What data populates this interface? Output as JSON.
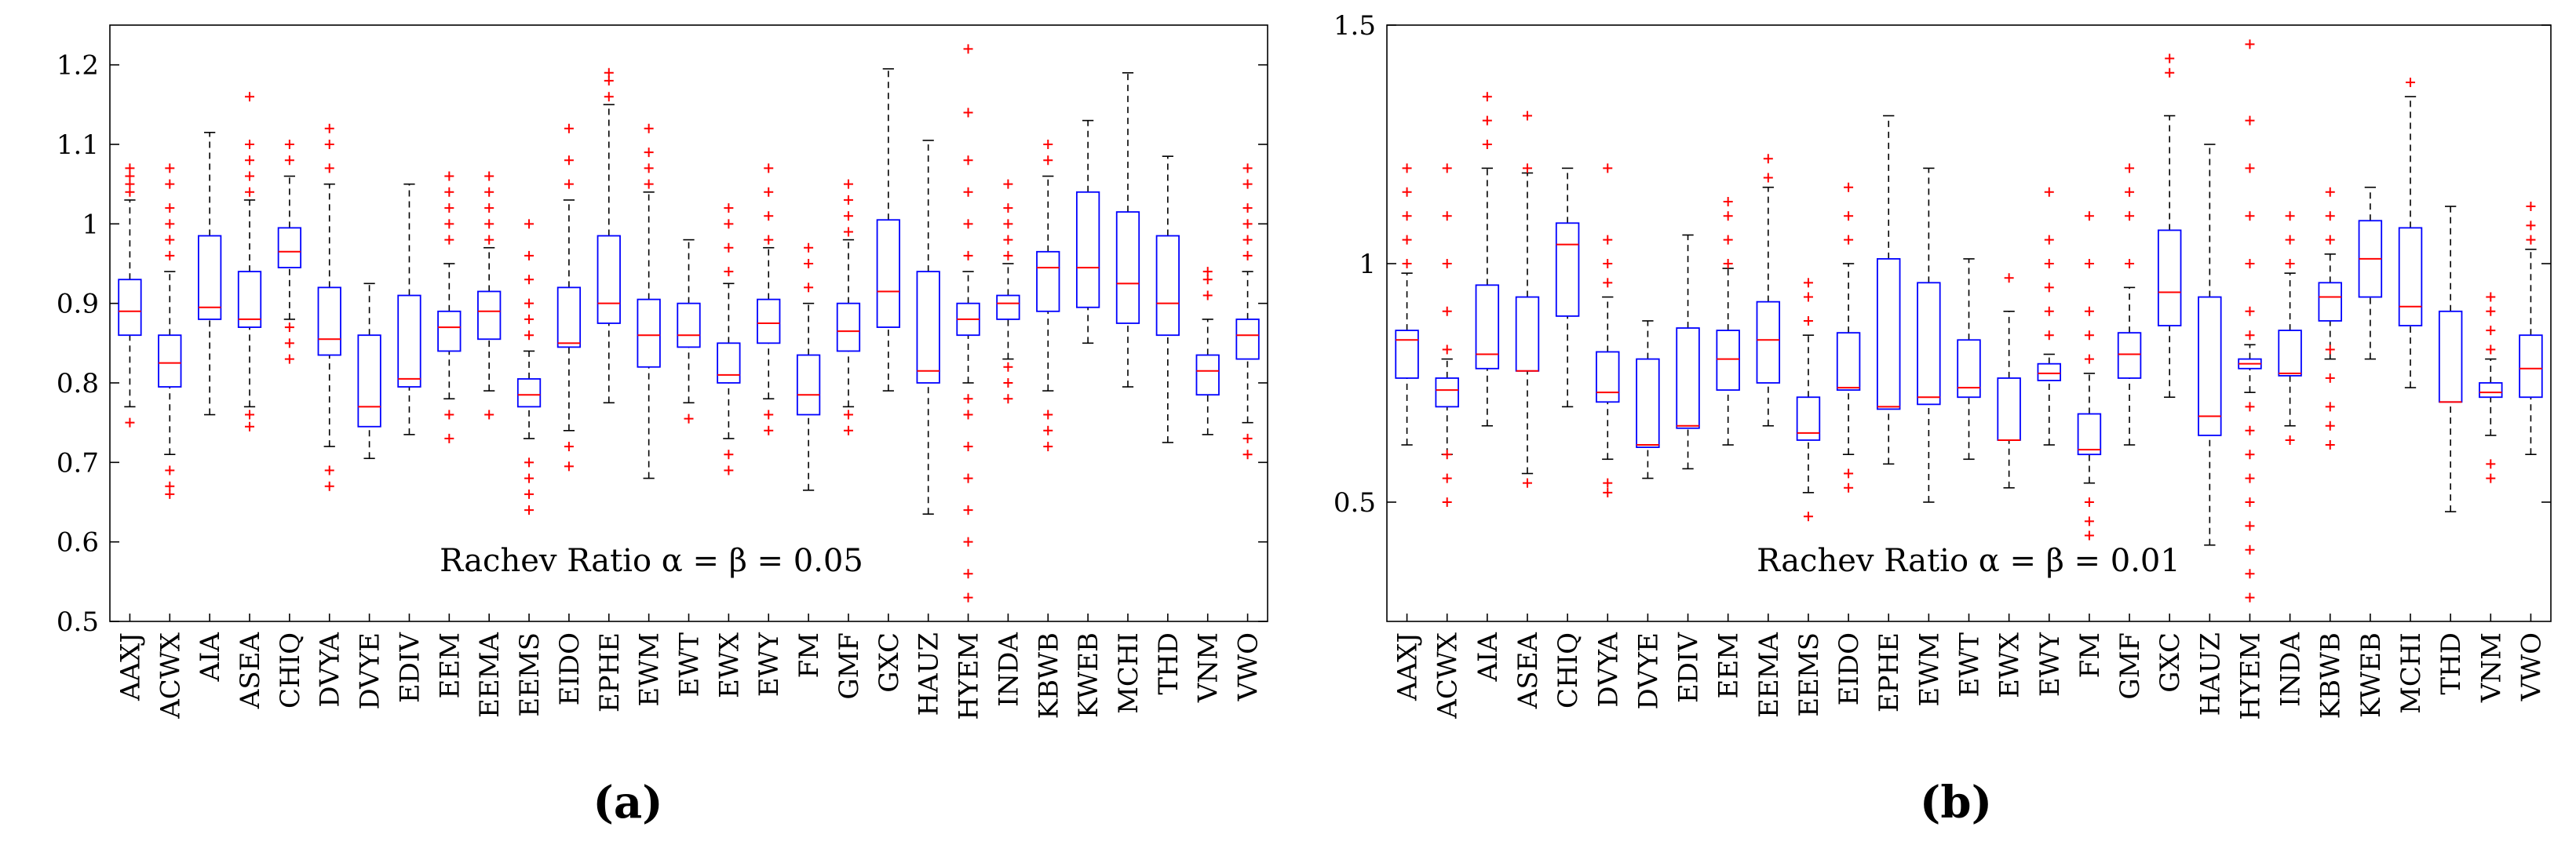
{
  "figure": {
    "panel_a_label": "(a)",
    "panel_b_label": "(b)"
  },
  "colors": {
    "box": "#0000ff",
    "median": "#ff0000",
    "outlier": "#ff0000",
    "whisker": "#000000"
  },
  "chart_data": [
    {
      "type": "box",
      "title": "Rachev Ratio α = β = 0.05",
      "categories": [
        "AAXJ",
        "ACWX",
        "AIA",
        "ASEA",
        "CHIQ",
        "DVYA",
        "DVYE",
        "EDIV",
        "EEM",
        "EEMA",
        "EEMS",
        "EIDO",
        "EPHE",
        "EWM",
        "EWT",
        "EWX",
        "EWY",
        "FM",
        "GMF",
        "GXC",
        "HAUZ",
        "HYEM",
        "INDA",
        "KBWB",
        "KWEB",
        "MCHI",
        "THD",
        "VNM",
        "VWO"
      ],
      "ylim": [
        0.5,
        1.25
      ],
      "yticks": [
        0.5,
        0.6,
        0.7,
        0.8,
        0.9,
        1.0,
        1.1,
        1.2
      ],
      "ytick_labels": [
        "0.5",
        "0.6",
        "0.7",
        "0.8",
        "0.9",
        "1",
        "1.1",
        "1.2"
      ],
      "boxes": [
        {
          "low": 0.77,
          "q1": 0.86,
          "median": 0.89,
          "q3": 0.93,
          "high": 1.03,
          "outliers": [
            0.75,
            1.04,
            1.05,
            1.06,
            1.07
          ]
        },
        {
          "low": 0.71,
          "q1": 0.795,
          "median": 0.825,
          "q3": 0.86,
          "high": 0.94,
          "outliers": [
            0.66,
            0.67,
            0.69,
            0.96,
            0.98,
            1.0,
            1.02,
            1.05,
            1.07
          ]
        },
        {
          "low": 0.76,
          "q1": 0.88,
          "median": 0.895,
          "q3": 0.985,
          "high": 1.115,
          "outliers": []
        },
        {
          "low": 0.77,
          "q1": 0.87,
          "median": 0.88,
          "q3": 0.94,
          "high": 1.03,
          "outliers": [
            0.745,
            0.76,
            1.04,
            1.06,
            1.08,
            1.1,
            1.16
          ]
        },
        {
          "low": 0.88,
          "q1": 0.945,
          "median": 0.965,
          "q3": 0.995,
          "high": 1.06,
          "outliers": [
            0.83,
            0.85,
            0.87,
            1.08,
            1.1
          ]
        },
        {
          "low": 0.72,
          "q1": 0.835,
          "median": 0.855,
          "q3": 0.92,
          "high": 1.05,
          "outliers": [
            0.67,
            0.69,
            1.07,
            1.1,
            1.12
          ]
        },
        {
          "low": 0.705,
          "q1": 0.745,
          "median": 0.77,
          "q3": 0.86,
          "high": 0.925,
          "outliers": []
        },
        {
          "low": 0.735,
          "q1": 0.795,
          "median": 0.805,
          "q3": 0.91,
          "high": 1.05,
          "outliers": []
        },
        {
          "low": 0.78,
          "q1": 0.84,
          "median": 0.87,
          "q3": 0.89,
          "high": 0.95,
          "outliers": [
            0.73,
            0.76,
            0.98,
            1.0,
            1.02,
            1.04,
            1.06
          ]
        },
        {
          "low": 0.79,
          "q1": 0.855,
          "median": 0.89,
          "q3": 0.915,
          "high": 0.97,
          "outliers": [
            0.76,
            0.98,
            1.0,
            1.02,
            1.04,
            1.06
          ]
        },
        {
          "low": 0.73,
          "q1": 0.77,
          "median": 0.785,
          "q3": 0.805,
          "high": 0.84,
          "outliers": [
            0.64,
            0.66,
            0.68,
            0.7,
            0.86,
            0.88,
            0.9,
            0.93,
            0.96,
            1.0
          ]
        },
        {
          "low": 0.74,
          "q1": 0.845,
          "median": 0.85,
          "q3": 0.92,
          "high": 1.03,
          "outliers": [
            0.695,
            0.72,
            1.05,
            1.08,
            1.12
          ]
        },
        {
          "low": 0.775,
          "q1": 0.875,
          "median": 0.9,
          "q3": 0.985,
          "high": 1.15,
          "outliers": [
            1.16,
            1.18,
            1.19
          ]
        },
        {
          "low": 0.68,
          "q1": 0.82,
          "median": 0.86,
          "q3": 0.905,
          "high": 1.04,
          "outliers": [
            1.05,
            1.07,
            1.09,
            1.12
          ]
        },
        {
          "low": 0.775,
          "q1": 0.845,
          "median": 0.86,
          "q3": 0.9,
          "high": 0.98,
          "outliers": [
            0.755
          ]
        },
        {
          "low": 0.73,
          "q1": 0.8,
          "median": 0.81,
          "q3": 0.85,
          "high": 0.925,
          "outliers": [
            0.69,
            0.71,
            0.94,
            0.97,
            1.0,
            1.02
          ]
        },
        {
          "low": 0.78,
          "q1": 0.85,
          "median": 0.875,
          "q3": 0.905,
          "high": 0.97,
          "outliers": [
            0.74,
            0.76,
            0.98,
            1.01,
            1.04,
            1.07
          ]
        },
        {
          "low": 0.665,
          "q1": 0.76,
          "median": 0.785,
          "q3": 0.835,
          "high": 0.9,
          "outliers": [
            0.92,
            0.95,
            0.97
          ]
        },
        {
          "low": 0.77,
          "q1": 0.84,
          "median": 0.865,
          "q3": 0.9,
          "high": 0.98,
          "outliers": [
            0.74,
            0.76,
            0.99,
            1.01,
            1.03,
            1.05
          ]
        },
        {
          "low": 0.79,
          "q1": 0.87,
          "median": 0.915,
          "q3": 1.005,
          "high": 1.195,
          "outliers": []
        },
        {
          "low": 0.635,
          "q1": 0.8,
          "median": 0.815,
          "q3": 0.94,
          "high": 1.105,
          "outliers": []
        },
        {
          "low": 0.8,
          "q1": 0.86,
          "median": 0.88,
          "q3": 0.9,
          "high": 0.94,
          "outliers": [
            0.53,
            0.56,
            0.6,
            0.64,
            0.68,
            0.72,
            0.76,
            0.78,
            0.96,
            1.0,
            1.04,
            1.08,
            1.14,
            1.22
          ]
        },
        {
          "low": 0.83,
          "q1": 0.88,
          "median": 0.9,
          "q3": 0.91,
          "high": 0.95,
          "outliers": [
            0.78,
            0.8,
            0.82,
            0.96,
            0.98,
            1.0,
            1.02,
            1.05
          ]
        },
        {
          "low": 0.79,
          "q1": 0.89,
          "median": 0.945,
          "q3": 0.965,
          "high": 1.06,
          "outliers": [
            0.72,
            0.74,
            0.76,
            1.08,
            1.1
          ]
        },
        {
          "low": 0.85,
          "q1": 0.895,
          "median": 0.945,
          "q3": 1.04,
          "high": 1.13,
          "outliers": []
        },
        {
          "low": 0.795,
          "q1": 0.875,
          "median": 0.925,
          "q3": 1.015,
          "high": 1.19,
          "outliers": []
        },
        {
          "low": 0.725,
          "q1": 0.86,
          "median": 0.9,
          "q3": 0.985,
          "high": 1.085,
          "outliers": []
        },
        {
          "low": 0.735,
          "q1": 0.785,
          "median": 0.815,
          "q3": 0.835,
          "high": 0.88,
          "outliers": [
            0.91,
            0.93,
            0.94
          ]
        },
        {
          "low": 0.75,
          "q1": 0.83,
          "median": 0.86,
          "q3": 0.88,
          "high": 0.94,
          "outliers": [
            0.71,
            0.73,
            0.96,
            0.98,
            1.0,
            1.02,
            1.05,
            1.07
          ]
        }
      ]
    },
    {
      "type": "box",
      "title": "Rachev Ratio α = β = 0.01",
      "categories": [
        "AAXJ",
        "ACWX",
        "AIA",
        "ASEA",
        "CHIQ",
        "DVYA",
        "DVYE",
        "EDIV",
        "EEM",
        "EEMA",
        "EEMS",
        "EIDO",
        "EPHE",
        "EWM",
        "EWT",
        "EWX",
        "EWY",
        "FM",
        "GMF",
        "GXC",
        "HAUZ",
        "HYEM",
        "INDA",
        "KBWB",
        "KWEB",
        "MCHI",
        "THD",
        "VNM",
        "VWO"
      ],
      "ylim": [
        0.25,
        1.5
      ],
      "yticks": [
        0.5,
        1.0,
        1.5
      ],
      "ytick_labels": [
        "0.5",
        "1",
        "1.5"
      ],
      "boxes": [
        {
          "low": 0.62,
          "q1": 0.76,
          "median": 0.84,
          "q3": 0.86,
          "high": 0.98,
          "outliers": [
            1.0,
            1.05,
            1.1,
            1.15,
            1.2
          ]
        },
        {
          "low": 0.6,
          "q1": 0.7,
          "median": 0.735,
          "q3": 0.76,
          "high": 0.8,
          "outliers": [
            0.5,
            0.55,
            0.6,
            0.82,
            0.9,
            1.0,
            1.1,
            1.2
          ]
        },
        {
          "low": 0.66,
          "q1": 0.78,
          "median": 0.81,
          "q3": 0.955,
          "high": 1.2,
          "outliers": [
            1.25,
            1.3,
            1.35
          ]
        },
        {
          "low": 0.56,
          "q1": 0.775,
          "median": 0.775,
          "q3": 0.93,
          "high": 1.19,
          "outliers": [
            0.54,
            1.2,
            1.31
          ]
        },
        {
          "low": 0.7,
          "q1": 0.89,
          "median": 1.04,
          "q3": 1.085,
          "high": 1.2,
          "outliers": []
        },
        {
          "low": 0.59,
          "q1": 0.71,
          "median": 0.73,
          "q3": 0.815,
          "high": 0.93,
          "outliers": [
            0.52,
            0.54,
            0.96,
            1.0,
            1.05,
            1.2
          ]
        },
        {
          "low": 0.55,
          "q1": 0.615,
          "median": 0.62,
          "q3": 0.8,
          "high": 0.88,
          "outliers": []
        },
        {
          "low": 0.57,
          "q1": 0.655,
          "median": 0.66,
          "q3": 0.865,
          "high": 1.06,
          "outliers": []
        },
        {
          "low": 0.62,
          "q1": 0.735,
          "median": 0.8,
          "q3": 0.86,
          "high": 0.99,
          "outliers": [
            1.0,
            1.05,
            1.1,
            1.13
          ]
        },
        {
          "low": 0.66,
          "q1": 0.75,
          "median": 0.84,
          "q3": 0.92,
          "high": 1.16,
          "outliers": [
            1.18,
            1.22
          ]
        },
        {
          "low": 0.52,
          "q1": 0.63,
          "median": 0.645,
          "q3": 0.72,
          "high": 0.85,
          "outliers": [
            0.47,
            0.88,
            0.93,
            0.96
          ]
        },
        {
          "low": 0.6,
          "q1": 0.735,
          "median": 0.74,
          "q3": 0.855,
          "high": 1.0,
          "outliers": [
            0.53,
            0.56,
            1.05,
            1.1,
            1.16
          ]
        },
        {
          "low": 0.58,
          "q1": 0.695,
          "median": 0.7,
          "q3": 1.01,
          "high": 1.31,
          "outliers": []
        },
        {
          "low": 0.5,
          "q1": 0.705,
          "median": 0.72,
          "q3": 0.96,
          "high": 1.2,
          "outliers": []
        },
        {
          "low": 0.59,
          "q1": 0.72,
          "median": 0.74,
          "q3": 0.84,
          "high": 1.01,
          "outliers": []
        },
        {
          "low": 0.53,
          "q1": 0.63,
          "median": 0.63,
          "q3": 0.76,
          "high": 0.9,
          "outliers": [
            0.97
          ]
        },
        {
          "low": 0.62,
          "q1": 0.755,
          "median": 0.77,
          "q3": 0.79,
          "high": 0.81,
          "outliers": [
            0.85,
            0.9,
            0.95,
            1.0,
            1.05,
            1.15
          ]
        },
        {
          "low": 0.54,
          "q1": 0.6,
          "median": 0.61,
          "q3": 0.685,
          "high": 0.77,
          "outliers": [
            0.43,
            0.46,
            0.5,
            0.8,
            0.85,
            0.9,
            1.0,
            1.1
          ]
        },
        {
          "low": 0.62,
          "q1": 0.76,
          "median": 0.81,
          "q3": 0.855,
          "high": 0.95,
          "outliers": [
            1.0,
            1.1,
            1.15,
            1.2
          ]
        },
        {
          "low": 0.72,
          "q1": 0.87,
          "median": 0.94,
          "q3": 1.07,
          "high": 1.31,
          "outliers": [
            1.4,
            1.43
          ]
        },
        {
          "low": 0.41,
          "q1": 0.64,
          "median": 0.68,
          "q3": 0.93,
          "high": 1.25,
          "outliers": []
        },
        {
          "low": 0.73,
          "q1": 0.78,
          "median": 0.79,
          "q3": 0.8,
          "high": 0.83,
          "outliers": [
            0.3,
            0.35,
            0.4,
            0.45,
            0.5,
            0.55,
            0.6,
            0.65,
            0.7,
            0.85,
            0.9,
            1.0,
            1.1,
            1.2,
            1.3,
            1.46
          ]
        },
        {
          "low": 0.66,
          "q1": 0.765,
          "median": 0.77,
          "q3": 0.86,
          "high": 0.98,
          "outliers": [
            0.63,
            1.0,
            1.05,
            1.1
          ]
        },
        {
          "low": 0.8,
          "q1": 0.88,
          "median": 0.93,
          "q3": 0.96,
          "high": 1.02,
          "outliers": [
            0.62,
            0.66,
            0.7,
            0.76,
            0.82,
            1.05,
            1.1,
            1.15
          ]
        },
        {
          "low": 0.8,
          "q1": 0.93,
          "median": 1.01,
          "q3": 1.09,
          "high": 1.16,
          "outliers": []
        },
        {
          "low": 0.74,
          "q1": 0.87,
          "median": 0.91,
          "q3": 1.075,
          "high": 1.35,
          "outliers": [
            1.38
          ]
        },
        {
          "low": 0.48,
          "q1": 0.71,
          "median": 0.71,
          "q3": 0.9,
          "high": 1.12,
          "outliers": []
        },
        {
          "low": 0.64,
          "q1": 0.72,
          "median": 0.73,
          "q3": 0.75,
          "high": 0.8,
          "outliers": [
            0.55,
            0.58,
            0.82,
            0.86,
            0.9,
            0.93
          ]
        },
        {
          "low": 0.6,
          "q1": 0.72,
          "median": 0.78,
          "q3": 0.85,
          "high": 1.03,
          "outliers": [
            1.05,
            1.08,
            1.12
          ]
        }
      ]
    }
  ]
}
